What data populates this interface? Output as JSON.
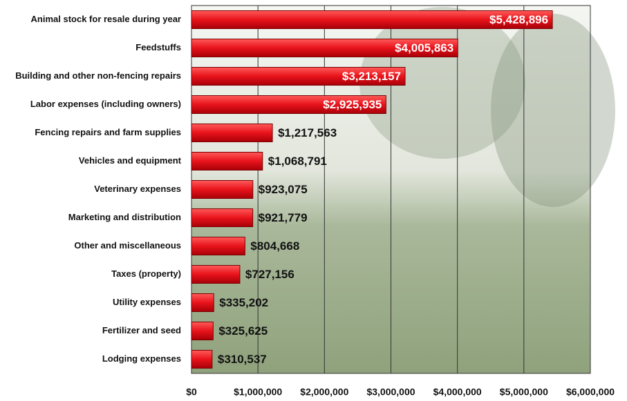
{
  "chart_data": {
    "type": "bar",
    "orientation": "horizontal",
    "categories": [
      "Animal  stock for resale during year",
      "Feedstuffs",
      "Building and other non-fencing repairs",
      "Labor expenses (including owners)",
      "Fencing repairs and farm supplies",
      "Vehicles and equipment",
      "Veterinary expenses",
      "Marketing and distribution",
      "Other and miscellaneous",
      "Taxes (property)",
      "Utility expenses",
      "Fertilizer and seed",
      "Lodging expenses"
    ],
    "values": [
      5428896,
      4005863,
      3213157,
      2925935,
      1217563,
      1068791,
      923075,
      921779,
      804668,
      727156,
      335202,
      325625,
      310537
    ],
    "value_labels": [
      "$5,428,896",
      "$4,005,863",
      "$3,213,157",
      "$2,925,935",
      "$1,217,563",
      "$1,068,791",
      "$923,075",
      "$921,779",
      "$804,668",
      "$727,156",
      "$335,202",
      "$325,625",
      "$310,537"
    ],
    "color": "#e8131b",
    "xlim": [
      0,
      6000000
    ],
    "xticks": [
      {
        "value": 0,
        "label": "$0"
      },
      {
        "value": 1000000,
        "label": "$1,000,000"
      },
      {
        "value": 2000000,
        "label": "$2,000,000"
      },
      {
        "value": 3000000,
        "label": "$3,000,000"
      },
      {
        "value": 4000000,
        "label": "$4,000,000"
      },
      {
        "value": 5000000,
        "label": "$5,000,000"
      },
      {
        "value": 6000000,
        "label": "$6,000,000"
      }
    ],
    "grid": true
  }
}
